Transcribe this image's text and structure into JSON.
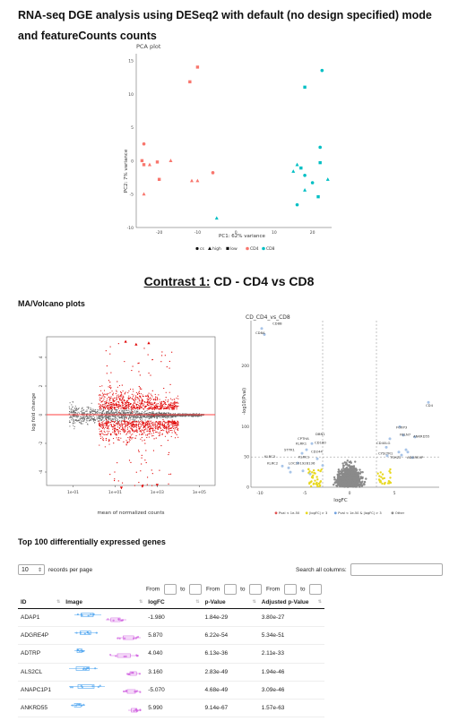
{
  "page": {
    "title": "RNA-seq DGE analysis using DESeq2 with default (no design specified) mode and featureCounts counts"
  },
  "pca": {
    "title": "PCA plot",
    "xlabel": "PC1: 62% variance",
    "ylabel": "PC2: 7% variance",
    "yticks": [
      "15",
      "10",
      "5",
      "0",
      "-5",
      "-10"
    ],
    "xticks": [
      "-20",
      "-10",
      "0",
      "10",
      "20"
    ],
    "legend_shapes": [
      {
        "label": "cs",
        "shape": "circle"
      },
      {
        "label": "high",
        "shape": "triangle"
      },
      {
        "label": "low",
        "shape": "square"
      }
    ],
    "legend_colors": [
      {
        "label": "CD4",
        "color": "#f8766d"
      },
      {
        "label": "CD8",
        "color": "#00bfc4"
      }
    ]
  },
  "contrast": {
    "label": "Contrast 1:",
    "name": "CD - CD4 vs CD8"
  },
  "ma_section": {
    "heading": "MA/Volcano plots"
  },
  "ma": {
    "xlabel": "mean of normalized counts",
    "ylabel": "log fold change",
    "xticks": [
      "1e-01",
      "1e+01",
      "1e+03",
      "1e+05"
    ],
    "yticks": [
      "4",
      "2",
      "0",
      "-2",
      "-4"
    ]
  },
  "volcano": {
    "title": "CD_CD4_vs_CD8",
    "xlabel": "logFC",
    "ylabel": "-log10(Pval)",
    "yticks": [
      "200",
      "100",
      "50",
      "0"
    ],
    "xticks": [
      "-10",
      "-5",
      "0",
      "5"
    ],
    "gene_labels": [
      "CD8B",
      "CD8A",
      "DBN1",
      "CPTHA",
      "KLRK1",
      "CD160",
      "STYK1",
      "CD244",
      "KLRC3",
      "KLRC1",
      "KLRC2",
      "LOC101928136",
      "CD4",
      "FOXP3",
      "FBLN7",
      "ANKRD55",
      "CD40LG",
      "CYSLTR1",
      "TSHZ2",
      "ADGRE4P"
    ],
    "legend": [
      "Pval < 1e-50",
      "|logFC| > 3",
      "Pval < 1e-50 & |logFC| > 3",
      "Other"
    ]
  },
  "top_section": {
    "heading": "Top 100 differentially expressed genes"
  },
  "table_controls": {
    "length_value": "10",
    "length_suffix": "records per page",
    "search_label": "Search all columns:",
    "from_label": "From",
    "to_label": "to"
  },
  "table": {
    "columns": [
      "ID",
      "Image",
      "logFC",
      "p-Value",
      "Adjusted p-Value"
    ],
    "rows": [
      {
        "id": "ADAP1",
        "logfc": "-1.980",
        "pvalue": "1.84e-29",
        "padj": "3.80e-27"
      },
      {
        "id": "ADGRE4P",
        "logfc": "5.870",
        "pvalue": "6.22e-54",
        "padj": "5.34e-51"
      },
      {
        "id": "ADTRP",
        "logfc": "4.040",
        "pvalue": "6.13e-36",
        "padj": "2.11e-33"
      },
      {
        "id": "ALS2CL",
        "logfc": "3.160",
        "pvalue": "2.83e-49",
        "padj": "1.94e-46"
      },
      {
        "id": "ANAPC1P1",
        "logfc": "-5.070",
        "pvalue": "4.68e-49",
        "padj": "3.09e-46"
      },
      {
        "id": "ANKRD55",
        "logfc": "5.990",
        "pvalue": "9.14e-67",
        "padj": "1.57e-63"
      }
    ]
  },
  "colors": {
    "cd4": "#f8766d",
    "cd8": "#00bfc4",
    "ma_sig": "#e00000",
    "ma_ns": "#666666",
    "strip_blue": "#4aa3f0",
    "strip_pink": "#d060e0"
  }
}
